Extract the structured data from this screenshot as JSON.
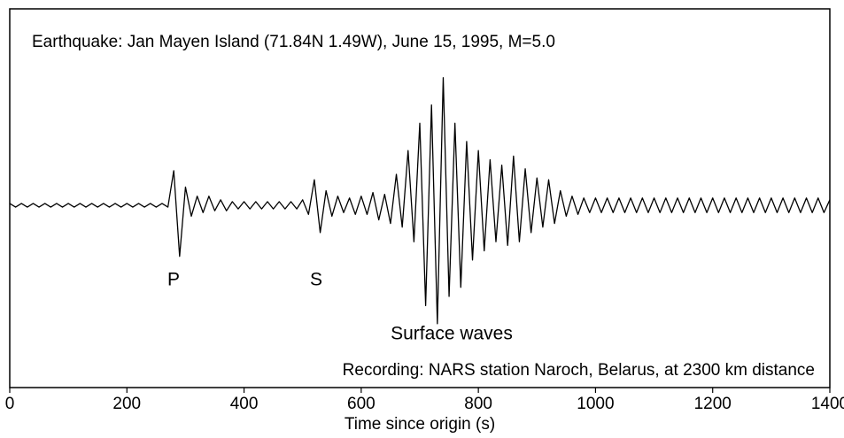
{
  "chart_data": {
    "type": "line",
    "title": "Earthquake: Jan Mayen Island (71.84N 1.49W), June 15, 1995, M=5.0",
    "subtitle": "Recording: NARS station Naroch, Belarus, at 2300 km distance",
    "x_label": "Time since origin (s)",
    "annotations": [
      "P",
      "S",
      "Surface waves"
    ],
    "color": "#000000",
    "x": [
      0,
      10,
      20,
      30,
      40,
      50,
      60,
      70,
      80,
      90,
      100,
      110,
      120,
      130,
      140,
      150,
      160,
      170,
      180,
      190,
      200,
      210,
      220,
      230,
      240,
      250,
      260,
      270,
      280,
      290,
      300,
      310,
      320,
      330,
      340,
      350,
      360,
      370,
      380,
      390,
      400,
      410,
      420,
      430,
      440,
      450,
      460,
      470,
      480,
      490,
      500,
      510,
      520,
      530,
      540,
      550,
      560,
      570,
      580,
      590,
      600,
      610,
      620,
      630,
      640,
      650,
      660,
      670,
      680,
      690,
      700,
      710,
      720,
      730,
      740,
      750,
      760,
      770,
      780,
      790,
      800,
      810,
      820,
      830,
      840,
      850,
      860,
      870,
      880,
      890,
      900,
      910,
      920,
      930,
      940,
      950,
      960,
      970,
      980,
      990,
      1000,
      1010,
      1020,
      1030,
      1040,
      1050,
      1060,
      1070,
      1080,
      1090,
      1100,
      1110,
      1120,
      1130,
      1140,
      1150,
      1160,
      1170,
      1180,
      1190,
      1200,
      1210,
      1220,
      1230,
      1240,
      1250,
      1260,
      1270,
      1280,
      1290,
      1300,
      1310,
      1320,
      1330,
      1340,
      1350,
      1360,
      1370,
      1380,
      1390,
      1400
    ],
    "values": [
      0.01,
      -0.01,
      0.01,
      -0.01,
      0.01,
      -0.01,
      0.01,
      -0.01,
      0.01,
      -0.01,
      0.01,
      -0.01,
      0.01,
      -0.01,
      0.01,
      -0.01,
      0.01,
      -0.01,
      0.01,
      -0.01,
      0.01,
      -0.01,
      0.01,
      -0.01,
      0.01,
      -0.01,
      0.01,
      -0.01,
      0.19,
      -0.28,
      0.1,
      -0.06,
      0.05,
      -0.04,
      0.05,
      -0.03,
      0.03,
      -0.03,
      0.02,
      -0.02,
      0.02,
      -0.02,
      0.02,
      -0.02,
      0.02,
      -0.02,
      0.02,
      -0.02,
      0.02,
      -0.02,
      0.03,
      -0.05,
      0.14,
      -0.15,
      0.08,
      -0.06,
      0.05,
      -0.04,
      0.04,
      -0.05,
      0.05,
      -0.05,
      0.07,
      -0.08,
      0.06,
      -0.1,
      0.17,
      -0.12,
      0.3,
      -0.2,
      0.45,
      -0.55,
      0.55,
      -0.65,
      0.7,
      -0.5,
      0.45,
      -0.45,
      0.35,
      -0.3,
      0.3,
      -0.25,
      0.25,
      -0.2,
      0.22,
      -0.22,
      0.27,
      -0.2,
      0.2,
      -0.15,
      0.15,
      -0.12,
      0.14,
      -0.1,
      0.08,
      -0.06,
      0.05,
      -0.05,
      0.04,
      -0.04,
      0.04,
      -0.04,
      0.04,
      -0.04,
      0.04,
      -0.04,
      0.04,
      -0.04,
      0.04,
      -0.04,
      0.04,
      -0.04,
      0.04,
      -0.04,
      0.04,
      -0.04,
      0.04,
      -0.04,
      0.04,
      -0.04,
      0.04,
      -0.04,
      0.04,
      -0.04,
      0.04,
      -0.04,
      0.04,
      -0.04,
      0.04,
      -0.04,
      0.04,
      -0.04,
      0.04,
      -0.04,
      0.04,
      -0.04,
      0.04,
      -0.04,
      0.04,
      -0.04,
      0.03
    ],
    "xlim": [
      0,
      1400
    ],
    "ylim": [
      -1,
      1
    ],
    "xticks": [
      0,
      200,
      400,
      600,
      800,
      1000,
      1200,
      1400
    ]
  }
}
